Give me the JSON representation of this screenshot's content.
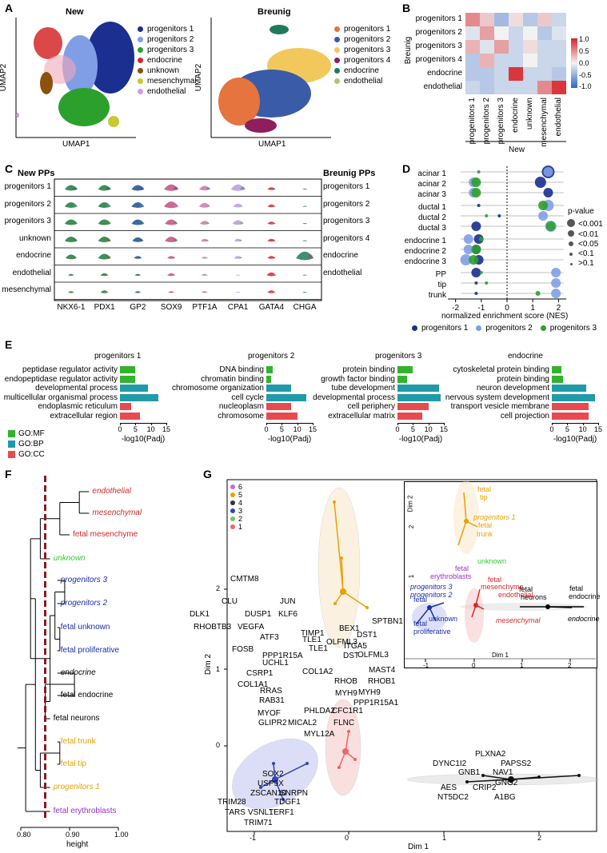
{
  "panels": {
    "A": "A",
    "B": "B",
    "C": "C",
    "D": "D",
    "E": "E",
    "F": "F",
    "G": "G"
  },
  "panelA": {
    "new_title": "New",
    "breunig_title": "Breunig",
    "xlabel": "UMAP1",
    "ylabel": "UMAP2",
    "new_legend": [
      {
        "label": "progenitors 1",
        "color": "#1a2f8f"
      },
      {
        "label": "progenitors 2",
        "color": "#7f9ee6"
      },
      {
        "label": "progenitors 3",
        "color": "#2ca02c"
      },
      {
        "label": "endocrine",
        "color": "#d62728"
      },
      {
        "label": "unknown",
        "color": "#8c510a"
      },
      {
        "label": "mesenchymal",
        "color": "#c8c832"
      },
      {
        "label": "endothelial",
        "color": "#d39be3"
      }
    ],
    "breunig_legend": [
      {
        "label": "progenitors 1",
        "color": "#e5743e"
      },
      {
        "label": "progenitors 2",
        "color": "#3a5ba8"
      },
      {
        "label": "progenitors 3",
        "color": "#f2c75c"
      },
      {
        "label": "progenitors 4",
        "color": "#8e1e5e"
      },
      {
        "label": "endocrine",
        "color": "#1f7a5a"
      },
      {
        "label": "endothelial",
        "color": "#a8c96a"
      }
    ]
  },
  "panelB": {
    "rows": [
      "progenitors 1",
      "progenitors 2",
      "progenitors 3",
      "progenitors 4",
      "endocrine",
      "endothelial"
    ],
    "cols": [
      "progenitors 1",
      "progenitors 2",
      "progenitors 3",
      "endocrine",
      "unknown",
      "mesenchymal",
      "endothelial"
    ],
    "values": [
      [
        0.5,
        0.2,
        -0.4,
        0.1,
        -0.3,
        0.2,
        -0.2
      ],
      [
        -0.1,
        0.4,
        0.0,
        -0.2,
        0.0,
        -0.3,
        -0.1
      ],
      [
        0.3,
        -0.1,
        0.4,
        -0.2,
        0.1,
        -0.2,
        -0.2
      ],
      [
        -0.3,
        0.3,
        -0.2,
        -0.2,
        0.0,
        -0.2,
        -0.2
      ],
      [
        -0.3,
        -0.3,
        -0.2,
        0.9,
        -0.2,
        -0.2,
        -0.3
      ],
      [
        -0.2,
        -0.3,
        -0.2,
        -0.2,
        -0.2,
        0.5,
        0.9
      ]
    ],
    "ylabel": "Breunig",
    "xlabel": "New",
    "scale_ticks": [
      "1.0",
      "0.5",
      "0.0",
      "-0.5",
      "-1.0"
    ]
  },
  "panelC": {
    "left_title": "New PPs",
    "right_title": "Breunig PPs",
    "left_rows": [
      "progenitors 1",
      "progenitors 2",
      "progenitors 3",
      "unknown",
      "endocrine",
      "endothelial",
      "mesenchymal"
    ],
    "right_rows": [
      "progenitors 1",
      "progenitors 2",
      "progenitors 3",
      "progenitors 4",
      "endocrine",
      "endothelial"
    ],
    "genes": [
      "NKX6-1",
      "PDX1",
      "GP2",
      "SOX9",
      "PTF1A",
      "CPA1",
      "GATA4",
      "CHGA"
    ]
  },
  "panelD": {
    "groups": [
      "acinar 1",
      "acinar 2",
      "acinar 3",
      "ductal 1",
      "ductal 2",
      "ductal 3",
      "endocrine 1",
      "endocrine 2",
      "endocrine 3",
      "PP",
      "tip",
      "trunk"
    ],
    "xlabel": "normalized enrichment score (NES)",
    "xticks": [
      "-2",
      "-1",
      "0",
      "1",
      "2"
    ],
    "pvalue_title": "p-value",
    "pvalue_levels": [
      "<0.001",
      "<0.01",
      "<0.05",
      "<0.1",
      ">0.1"
    ],
    "series": [
      {
        "name": "progenitors 1",
        "color": "#1a2f8f",
        "nes": [
          1.6,
          1.3,
          1.6,
          -1.1,
          -0.3,
          -1.2,
          -1.1,
          -1.2,
          -1.1,
          -1.2,
          -1.2,
          -1.2
        ]
      },
      {
        "name": "progenitors 2",
        "color": "#7f9ee6",
        "nes": [
          1.6,
          -1.3,
          -1.3,
          1.6,
          1.4,
          1.7,
          -1.5,
          -1.5,
          -1.6,
          1.9,
          1.9,
          1.9
        ]
      },
      {
        "name": "progenitors 3",
        "color": "#2ca02c",
        "nes": [
          -1.1,
          -1.2,
          -1.2,
          1.4,
          -0.8,
          1.7,
          -1.0,
          -1.2,
          -1.3,
          -1.0,
          -0.8,
          1.2
        ]
      }
    ]
  },
  "panelE": {
    "xlabel": "-log10(Padj)",
    "legend": [
      {
        "label": "GO:MF",
        "color": "#33b22e"
      },
      {
        "label": "GO:BP",
        "color": "#1f9aa8"
      },
      {
        "label": "GO:CC",
        "color": "#e84a4f"
      }
    ],
    "charts": [
      {
        "title": "progenitors 1",
        "xticks": [
          "0",
          "5",
          "10",
          "15"
        ],
        "xmax": 15,
        "terms": [
          "peptidase regulator activity",
          "endopeptidase regulator activity",
          "developmental process",
          "multicellular organismal process",
          "endoplasmic reticulum",
          "extracellular region"
        ],
        "types": [
          "MF",
          "MF",
          "BP",
          "BP",
          "CC",
          "CC"
        ],
        "values": [
          5,
          5,
          9,
          12.5,
          3.5,
          6.5
        ]
      },
      {
        "title": "progenitors 2",
        "xticks": [
          "0",
          "5",
          "10",
          "15"
        ],
        "xmax": 15,
        "terms": [
          "DNA binding",
          "chromatin binding",
          "chromosome organization",
          "cell cycle",
          "nucleoplasm",
          "chromosome"
        ],
        "types": [
          "MF",
          "MF",
          "BP",
          "BP",
          "CC",
          "CC"
        ],
        "values": [
          2,
          1.5,
          8,
          13,
          8,
          10
        ]
      },
      {
        "title": "progenitors 3",
        "xticks": [
          "0",
          "5",
          "10",
          "15"
        ],
        "xmax": 15,
        "terms": [
          "protein binding",
          "growth factor binding",
          "tube development",
          "developmental process",
          "cell periphery",
          "extracellular matrix"
        ],
        "types": [
          "MF",
          "MF",
          "BP",
          "BP",
          "CC",
          "CC"
        ],
        "values": [
          5,
          3,
          13.5,
          14,
          10,
          8
        ]
      },
      {
        "title": "endocrine",
        "xticks": [
          "0",
          "5",
          "10",
          "15"
        ],
        "xmax": 15,
        "terms": [
          "cytoskeletal protein binding",
          "protein binding",
          "neuron development",
          "nervous system development",
          "transport vesicle membrane",
          "cell projection"
        ],
        "types": [
          "MF",
          "MF",
          "BP",
          "BP",
          "CC",
          "CC"
        ],
        "values": [
          3,
          3.5,
          11,
          14,
          12,
          12
        ]
      }
    ]
  },
  "panelF": {
    "xlabel": "height",
    "xticks": [
      "0.80",
      "0.90",
      "1.00"
    ],
    "leaves": [
      {
        "label": "endothelial",
        "color": "#d62728",
        "italic": true
      },
      {
        "label": "mesenchymal",
        "color": "#d62728",
        "italic": true
      },
      {
        "label": "fetal mesenchyme",
        "color": "#d62728",
        "italic": false
      },
      {
        "label": "unknown",
        "color": "#33cc33",
        "italic": true
      },
      {
        "label": "progenitors 3",
        "color": "#1a2fa8",
        "italic": true
      },
      {
        "label": "progenitors 2",
        "color": "#1a2fa8",
        "italic": true
      },
      {
        "label": "fetal unknown",
        "color": "#1a2fa8",
        "italic": false
      },
      {
        "label": "fetal proliferative",
        "color": "#1a2fa8",
        "italic": false
      },
      {
        "label": "endocrine",
        "color": "#000000",
        "italic": true
      },
      {
        "label": "fetal endocrine",
        "color": "#000000",
        "italic": false
      },
      {
        "label": "fetal neurons",
        "color": "#000000",
        "italic": false
      },
      {
        "label": "fetal trunk",
        "color": "#e8a200",
        "italic": false
      },
      {
        "label": "fetal tip",
        "color": "#e8a200",
        "italic": false
      },
      {
        "label": "progenitors 1",
        "color": "#e8a200",
        "italic": true
      },
      {
        "label": "fetal erythroblasts",
        "color": "#9b30c8",
        "italic": false
      }
    ]
  },
  "panelG": {
    "xlabel": "Dim 1",
    "ylabel": "Dim 2",
    "xticks": [
      "-1",
      "0",
      "1",
      "2"
    ],
    "yticks": [
      "2",
      "1",
      "0"
    ],
    "cluster_legend": [
      {
        "label": "6",
        "color": "#cc66dd"
      },
      {
        "label": "5",
        "color": "#e8a200"
      },
      {
        "label": "4",
        "color": "#333333"
      },
      {
        "label": "3",
        "color": "#3344bb"
      },
      {
        "label": "2",
        "color": "#66cc66"
      },
      {
        "label": "1",
        "color": "#ee6666"
      }
    ],
    "genes_c5": [
      "CMTM8",
      "CLU",
      "JUN",
      "DLK1",
      "DUSP1",
      "KLF6",
      "RHOBTB3",
      "VEGFA",
      "ATF3",
      "FOSB"
    ],
    "genes_c1": [
      "SPTBN1",
      "BEX1",
      "TIMP1",
      "DST1",
      "TLE1",
      "OLFML3",
      "TLE1",
      "ITGA5",
      "PPP1R15A",
      "DST",
      "OLFML3",
      "UCHL1",
      "CSRP1",
      "COL1A2",
      "MAST4",
      "COL1A1",
      "RHOB",
      "RHOB1",
      "RRAS",
      "MYH9",
      "MYH9",
      "RAB31",
      "PPP1R15A1",
      "MYOF",
      "PHLDA2",
      "CFC1R1",
      "GLIPR2",
      "MICAL2",
      "FLNC",
      "MYL12A"
    ],
    "genes_c3": [
      "SOX2",
      "USP9X",
      "ZSCAN10",
      "SNRPN",
      "TRIM28",
      "TDGF1",
      "TARS",
      "VSNL1",
      "TERF1",
      "TRIM71"
    ],
    "genes_c4": [
      "PLXNA2",
      "DYNC1I2",
      "PAPSS2",
      "GNB1",
      "NAV1",
      "GNG2",
      "AES",
      "CRIP2",
      "NT5DC2",
      "A1BG"
    ],
    "inset": {
      "xlabel": "Dim 1",
      "ylabel": "Dim 2",
      "xticks": [
        "-1",
        "0",
        "1",
        "2"
      ],
      "yticks": [
        "2",
        "1"
      ],
      "labels": [
        {
          "text": "fetal",
          "color": "#e8a200"
        },
        {
          "text": "tip",
          "color": "#e8a200"
        },
        {
          "text": "progenitors 1",
          "color": "#e8a200"
        },
        {
          "text": "fetal",
          "color": "#e8a200"
        },
        {
          "text": "trunk",
          "color": "#e8a200"
        },
        {
          "text": "fetal",
          "color": "#9b30c8"
        },
        {
          "text": "erythroblasts",
          "color": "#9b30c8"
        },
        {
          "text": "unknown",
          "color": "#33cc33"
        },
        {
          "text": "fetal",
          "color": "#d62728"
        },
        {
          "text": "mesenchyme",
          "color": "#d62728"
        },
        {
          "text": "endothelial",
          "color": "#d62728"
        },
        {
          "text": "mesenchymal",
          "color": "#d62728"
        },
        {
          "text": "progenitors 3",
          "color": "#1a2fa8"
        },
        {
          "text": "progenitors 2",
          "color": "#1a2fa8"
        },
        {
          "text": "fetal",
          "color": "#1a2fa8"
        },
        {
          "text": "unknown",
          "color": "#1a2fa8"
        },
        {
          "text": "fetal",
          "color": "#1a2fa8"
        },
        {
          "text": "proliferative",
          "color": "#1a2fa8"
        },
        {
          "text": "fetal",
          "color": "#000000"
        },
        {
          "text": "neurons",
          "color": "#000000"
        },
        {
          "text": "fetal",
          "color": "#000000"
        },
        {
          "text": "endocrine",
          "color": "#000000"
        },
        {
          "text": "endocrine",
          "color": "#000000"
        }
      ]
    }
  }
}
